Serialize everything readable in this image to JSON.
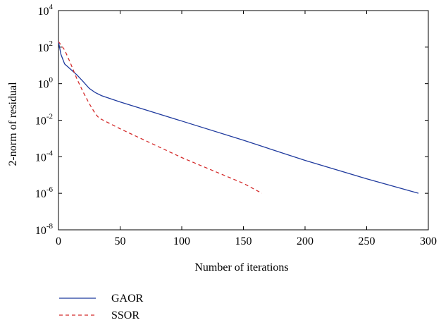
{
  "chart_data": {
    "type": "line",
    "title": "",
    "xlabel": "Number of iterations",
    "ylabel": "2-norm of residual",
    "xlim": [
      0,
      300
    ],
    "ylim_exponent": [
      -8,
      4
    ],
    "yscale": "log",
    "x_ticks": [
      0,
      50,
      100,
      150,
      200,
      250,
      300
    ],
    "y_tick_exponents": [
      -8,
      -6,
      -4,
      -2,
      0,
      2,
      4
    ],
    "y_tick_base": "10",
    "grid": false,
    "legend_position": "below plot, left",
    "series": [
      {
        "name": "GAOR",
        "color": "#1f3a9e",
        "style": "solid",
        "points": [
          [
            0,
            200
          ],
          [
            2,
            40
          ],
          [
            5,
            12
          ],
          [
            10,
            6
          ],
          [
            15,
            3
          ],
          [
            20,
            1.3
          ],
          [
            25,
            0.55
          ],
          [
            30,
            0.32
          ],
          [
            35,
            0.22
          ],
          [
            50,
            0.1
          ],
          [
            100,
            0.009
          ],
          [
            150,
            0.0008
          ],
          [
            200,
            6.3e-05
          ],
          [
            250,
            6.2e-06
          ],
          [
            292,
            1e-06
          ]
        ]
      },
      {
        "name": "SSOR",
        "color": "#d42b2b",
        "style": "dashed",
        "points": [
          [
            0,
            200
          ],
          [
            5,
            70
          ],
          [
            10,
            12
          ],
          [
            15,
            1.8
          ],
          [
            20,
            0.35
          ],
          [
            25,
            0.08
          ],
          [
            30,
            0.022
          ],
          [
            33,
            0.013
          ],
          [
            50,
            0.0034
          ],
          [
            100,
            9e-05
          ],
          [
            150,
            3.5e-06
          ],
          [
            165,
            1e-06
          ]
        ]
      }
    ]
  }
}
